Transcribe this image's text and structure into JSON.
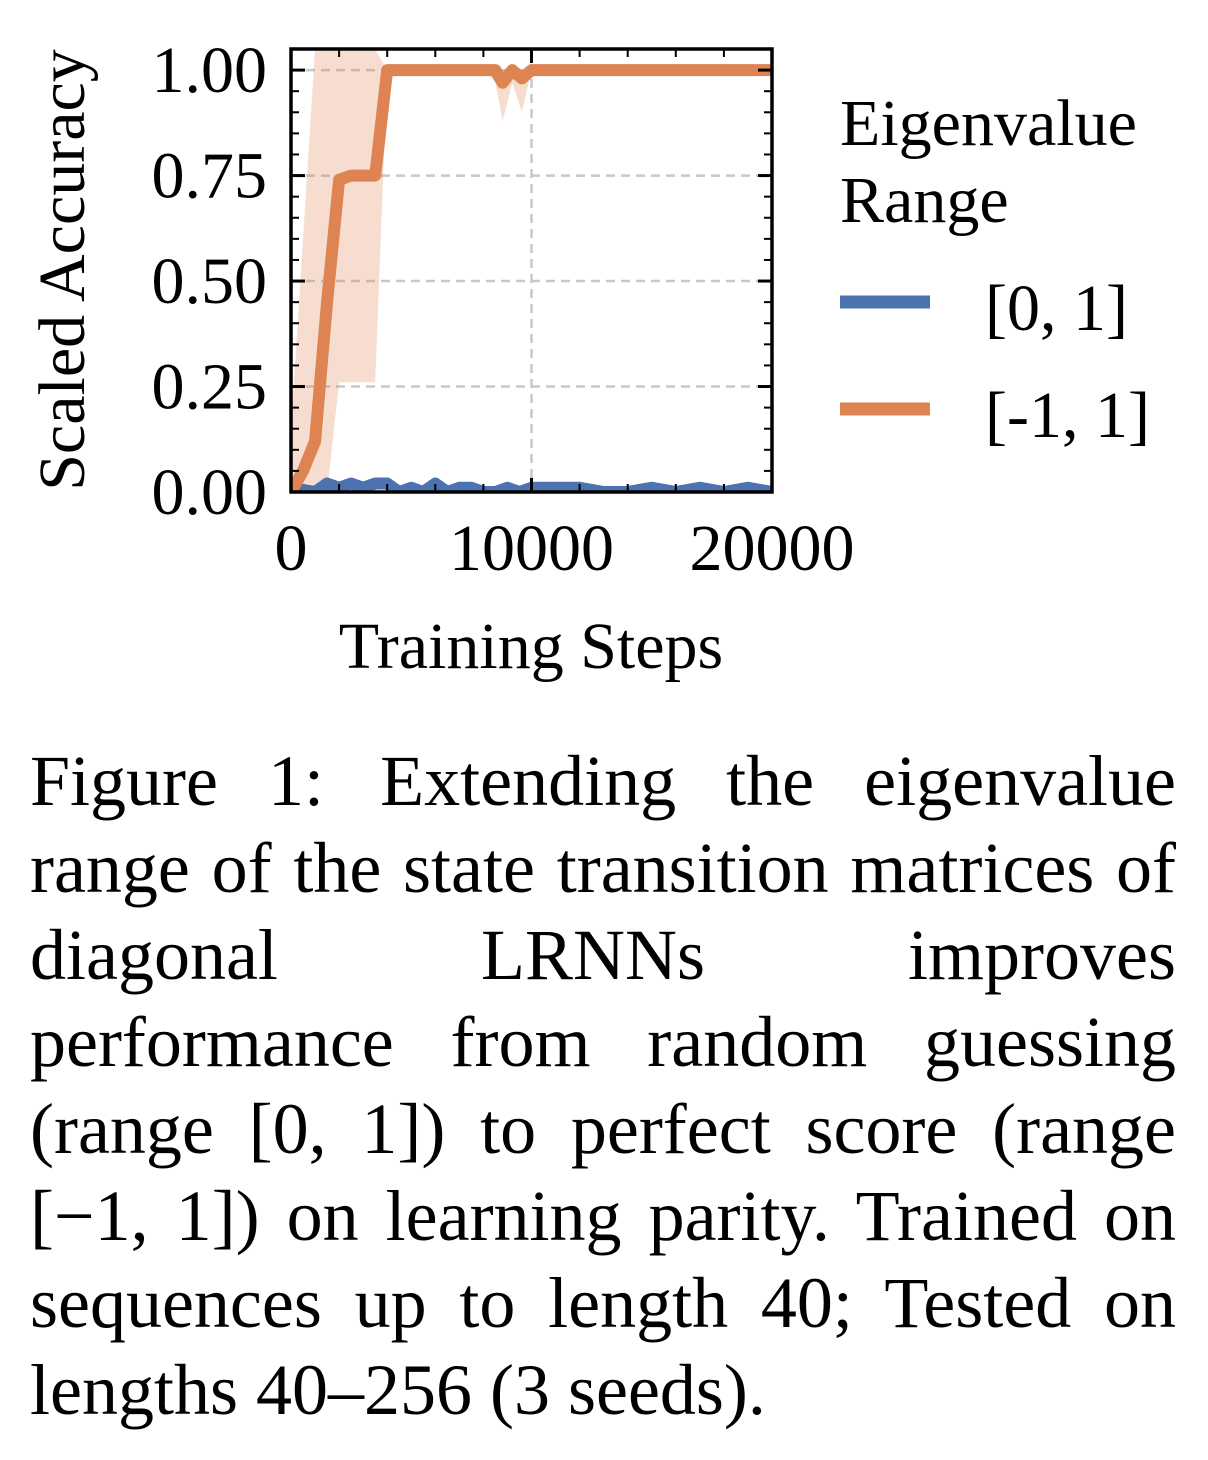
{
  "chart_data": {
    "type": "line",
    "xlabel": "Training Steps",
    "ylabel": "Scaled Accuracy",
    "xlim": [
      0,
      20000
    ],
    "ylim": [
      0,
      1.05
    ],
    "xticks": [
      0,
      10000,
      20000
    ],
    "xtick_labels": [
      "0",
      "10000",
      "20000"
    ],
    "yticks": [
      0,
      0.25,
      0.5,
      0.75,
      1.0
    ],
    "ytick_labels": [
      "0.00",
      "0.25",
      "0.50",
      "0.75",
      "1.00"
    ],
    "grid": true,
    "legend": {
      "title": [
        "Eigenvalue",
        "Range"
      ],
      "placement": "outside-right"
    },
    "series": [
      {
        "name": "[0, 1]",
        "color": "#4c72b0",
        "x": [
          0,
          500,
          1000,
          1500,
          2000,
          2500,
          3000,
          3500,
          4000,
          4500,
          5000,
          5500,
          6000,
          6500,
          7000,
          7500,
          8000,
          8500,
          9000,
          9500,
          10000,
          11000,
          12000,
          13000,
          14000,
          15000,
          16000,
          17000,
          18000,
          19000,
          20000
        ],
        "values": [
          0.0,
          0.005,
          0.0,
          0.02,
          0.01,
          0.02,
          0.01,
          0.02,
          0.02,
          0.0,
          0.01,
          0.0,
          0.02,
          0.0,
          0.01,
          0.01,
          0.0,
          0.0,
          0.01,
          0.0,
          0.01,
          0.01,
          0.01,
          0.0,
          0.0,
          0.01,
          0.0,
          0.01,
          0.0,
          0.01,
          0.0
        ]
      },
      {
        "name": "[-1, 1]",
        "color": "#dd8452",
        "x": [
          0,
          500,
          1000,
          1500,
          2000,
          2500,
          3000,
          3500,
          4000,
          5000,
          6000,
          7000,
          8000,
          8500,
          8800,
          9200,
          9600,
          10000,
          12000,
          14000,
          16000,
          18000,
          20000
        ],
        "values": [
          0.0,
          0.05,
          0.12,
          0.45,
          0.74,
          0.75,
          0.75,
          0.75,
          1.0,
          1.0,
          1.0,
          1.0,
          1.0,
          1.0,
          0.97,
          1.0,
          0.98,
          1.0,
          1.0,
          1.0,
          1.0,
          1.0,
          1.0
        ],
        "band_lower": [
          0.0,
          0.0,
          0.0,
          0.0,
          0.26,
          0.26,
          0.26,
          0.26,
          1.0,
          1.0,
          1.0,
          1.0,
          1.0,
          0.97,
          0.88,
          0.97,
          0.9,
          1.0,
          1.0,
          1.0,
          1.0,
          1.0,
          1.0
        ],
        "band_upper": [
          0.15,
          0.6,
          1.05,
          1.05,
          1.05,
          1.05,
          1.05,
          1.05,
          1.0,
          1.0,
          1.0,
          1.0,
          1.0,
          1.0,
          1.0,
          1.0,
          1.0,
          1.0,
          1.0,
          1.0,
          1.0,
          1.0,
          1.0
        ]
      }
    ]
  },
  "caption": {
    "label": "Figure 1:",
    "text": "Extending the eigenvalue range of the state transition matri­ces of diagonal LRNNs improves performance from random guessing (range [0, 1]) to perfect score (range [−1, 1]) on learning parity. Trained on sequences up to length 40; Tested on lengths 40–256 (3 seeds)."
  }
}
